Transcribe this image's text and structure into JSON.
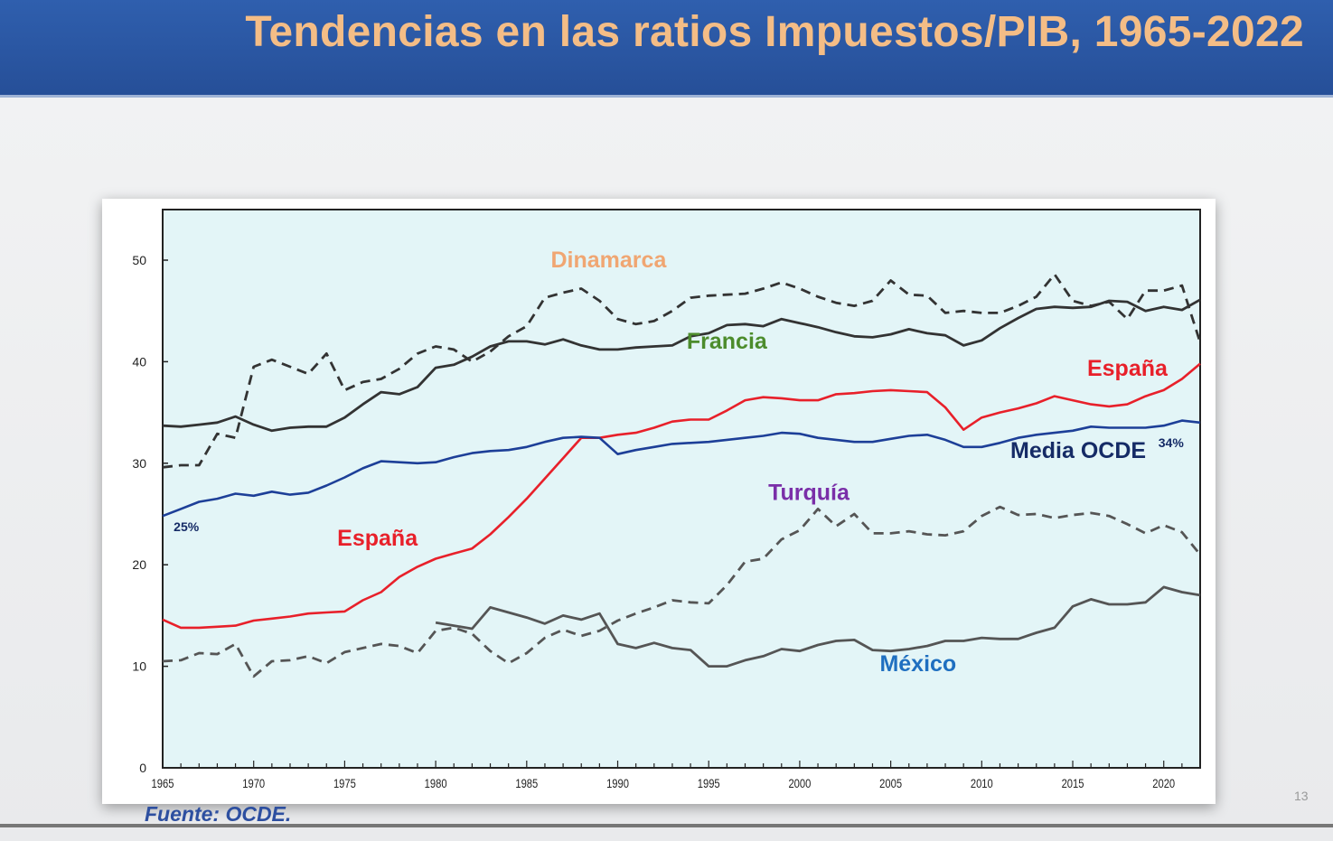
{
  "slide": {
    "title": "Tendencias en las ratios Impuestos/PIB, 1965-2022",
    "source": "Fuente: OCDE.",
    "page_number": "13"
  },
  "chart_data": {
    "type": "line",
    "title": "",
    "xlabel": "",
    "ylabel": "",
    "xlim": [
      1965,
      2022
    ],
    "ylim": [
      0,
      50
    ],
    "x_ticks": [
      1965,
      1970,
      1975,
      1980,
      1985,
      1990,
      1995,
      2000,
      2005,
      2010,
      2015,
      2020
    ],
    "y_ticks": [
      0,
      10,
      20,
      30,
      40,
      50
    ],
    "grid": false,
    "background": "#e3f5f7",
    "series": [
      {
        "name": "Dinamarca",
        "color": "#333333",
        "dashed": true,
        "label_color": "#f0a672",
        "start": 1965,
        "values": [
          29.6,
          29.8,
          29.8,
          32.9,
          32.5,
          39.5,
          40.2,
          39.5,
          38.8,
          40.8,
          37.2,
          38,
          38.3,
          39.3,
          40.8,
          41.5,
          41.2,
          40,
          41,
          42.5,
          43.5,
          46.3,
          46.8,
          47.2,
          46,
          44.2,
          43.7,
          44,
          45,
          46.3,
          46.5,
          46.6,
          46.7,
          47.2,
          47.8,
          47.2,
          46.4,
          45.8,
          45.5,
          46,
          48,
          46.6,
          46.5,
          44.8,
          45,
          44.8,
          44.8,
          45.5,
          46.4,
          48.6,
          46,
          45.5,
          45.9,
          44.2,
          47,
          47,
          47.5,
          41.9
        ]
      },
      {
        "name": "Francia",
        "color": "#333333",
        "dashed": false,
        "label_color": "#4c8c2c",
        "start": 1965,
        "values": [
          33.7,
          33.6,
          33.8,
          34,
          34.6,
          33.8,
          33.2,
          33.5,
          33.6,
          33.6,
          34.5,
          35.8,
          37,
          36.8,
          37.5,
          39.4,
          39.7,
          40.5,
          41.5,
          42,
          42,
          41.7,
          42.2,
          41.6,
          41.2,
          41.2,
          41.4,
          41.5,
          41.6,
          42.5,
          42.8,
          43.6,
          43.7,
          43.5,
          44.2,
          43.8,
          43.4,
          42.9,
          42.5,
          42.4,
          42.7,
          43.2,
          42.8,
          42.6,
          41.6,
          42.1,
          43.3,
          44.3,
          45.2,
          45.4,
          45.3,
          45.4,
          46,
          45.9,
          45,
          45.4,
          45.1,
          46.1
        ]
      },
      {
        "name": "España",
        "color": "#e8202a",
        "dashed": false,
        "label_color": "#e8202a",
        "start": 1965,
        "values": [
          14.6,
          13.8,
          13.8,
          13.9,
          14,
          14.5,
          14.7,
          14.9,
          15.2,
          15.3,
          15.4,
          16.5,
          17.3,
          18.8,
          19.8,
          20.6,
          21.1,
          21.6,
          23,
          24.7,
          26.5,
          28.5,
          30.5,
          32.5,
          32.5,
          32.8,
          33,
          33.5,
          34.1,
          34.3,
          34.3,
          35.2,
          36.2,
          36.5,
          36.4,
          36.2,
          36.2,
          36.8,
          36.9,
          37.1,
          37.2,
          37.1,
          37,
          35.5,
          33.3,
          34.5,
          35,
          35.4,
          35.9,
          36.6,
          36.2,
          35.8,
          35.6,
          35.8,
          36.6,
          37.2,
          38.3,
          39.8
        ]
      },
      {
        "name": "Media OCDE",
        "color": "#1d3f98",
        "dashed": false,
        "label_color": "#152b66",
        "start": 1965,
        "values": [
          24.8,
          25.5,
          26.2,
          26.5,
          27,
          26.8,
          27.2,
          26.9,
          27.1,
          27.8,
          28.6,
          29.5,
          30.2,
          30.1,
          30,
          30.1,
          30.6,
          31,
          31.2,
          31.3,
          31.6,
          32.1,
          32.5,
          32.6,
          32.5,
          30.9,
          31.3,
          31.6,
          31.9,
          32,
          32.1,
          32.3,
          32.5,
          32.7,
          33,
          32.9,
          32.5,
          32.3,
          32.1,
          32.1,
          32.4,
          32.7,
          32.8,
          32.3,
          31.6,
          31.6,
          32,
          32.5,
          32.8,
          33,
          33.2,
          33.6,
          33.5,
          33.5,
          33.5,
          33.7,
          34.2,
          34
        ]
      },
      {
        "name": "Turquía",
        "color": "#555555",
        "dashed": true,
        "label_color": "#7a2fa8",
        "start": 1965,
        "values": [
          10.5,
          10.6,
          11.3,
          11.2,
          12.2,
          9,
          10.5,
          10.6,
          11,
          10.3,
          11.4,
          11.8,
          12.2,
          12,
          11.3,
          13.5,
          13.8,
          13.2,
          11.5,
          10.3,
          11.3,
          12.8,
          13.6,
          13,
          13.5,
          14.5,
          15.2,
          15.8,
          16.5,
          16.3,
          16.2,
          18,
          20.3,
          20.6,
          22.5,
          23.4,
          25.5,
          23.8,
          25,
          23.1,
          23.1,
          23.3,
          23,
          22.9,
          23.3,
          24.8,
          25.7,
          24.9,
          25,
          24.6,
          24.9,
          25.1,
          24.8,
          24,
          23.1,
          23.9,
          23.2,
          21
        ]
      },
      {
        "name": "México",
        "color": "#555555",
        "dashed": false,
        "label_color": "#1f6fc0",
        "start": 1980,
        "values": [
          14.3,
          14,
          13.7,
          15.8,
          15.3,
          14.8,
          14.2,
          15,
          14.6,
          15.2,
          12.2,
          11.8,
          12.3,
          11.8,
          11.6,
          10,
          10,
          10.6,
          11,
          11.7,
          11.5,
          12.1,
          12.5,
          12.6,
          11.6,
          11.5,
          11.7,
          12,
          12.5,
          12.5,
          12.8,
          12.7,
          12.7,
          13.3,
          13.8,
          15.9,
          16.6,
          16.1,
          16.1,
          16.3,
          17.8,
          17.3,
          17
        ]
      }
    ],
    "annotations": [
      {
        "text": "Dinamarca",
        "series": "Dinamarca",
        "x": 1989.5,
        "y": 49.3
      },
      {
        "text": "Francia",
        "series": "Francia",
        "x": 1996,
        "y": 41.3
      },
      {
        "text": "España",
        "series": "España",
        "x": 2018,
        "y": 38.6
      },
      {
        "text": "España",
        "series": "España",
        "x": 1976.8,
        "y": 21.9
      },
      {
        "text": "Media OCDE",
        "series": "Media OCDE",
        "x": 2015.3,
        "y": 30.5
      },
      {
        "text": "Turquía",
        "series": "Turquía",
        "x": 2000.5,
        "y": 26.4
      },
      {
        "text": "México",
        "series": "México",
        "x": 2006.5,
        "y": 9.5
      },
      {
        "text": "25%",
        "series": "Media OCDE",
        "x": 1966.3,
        "y": 23.3,
        "small": true
      },
      {
        "text": "34%",
        "series": "Media OCDE",
        "x": 2020.4,
        "y": 31.6,
        "small": true
      }
    ]
  }
}
